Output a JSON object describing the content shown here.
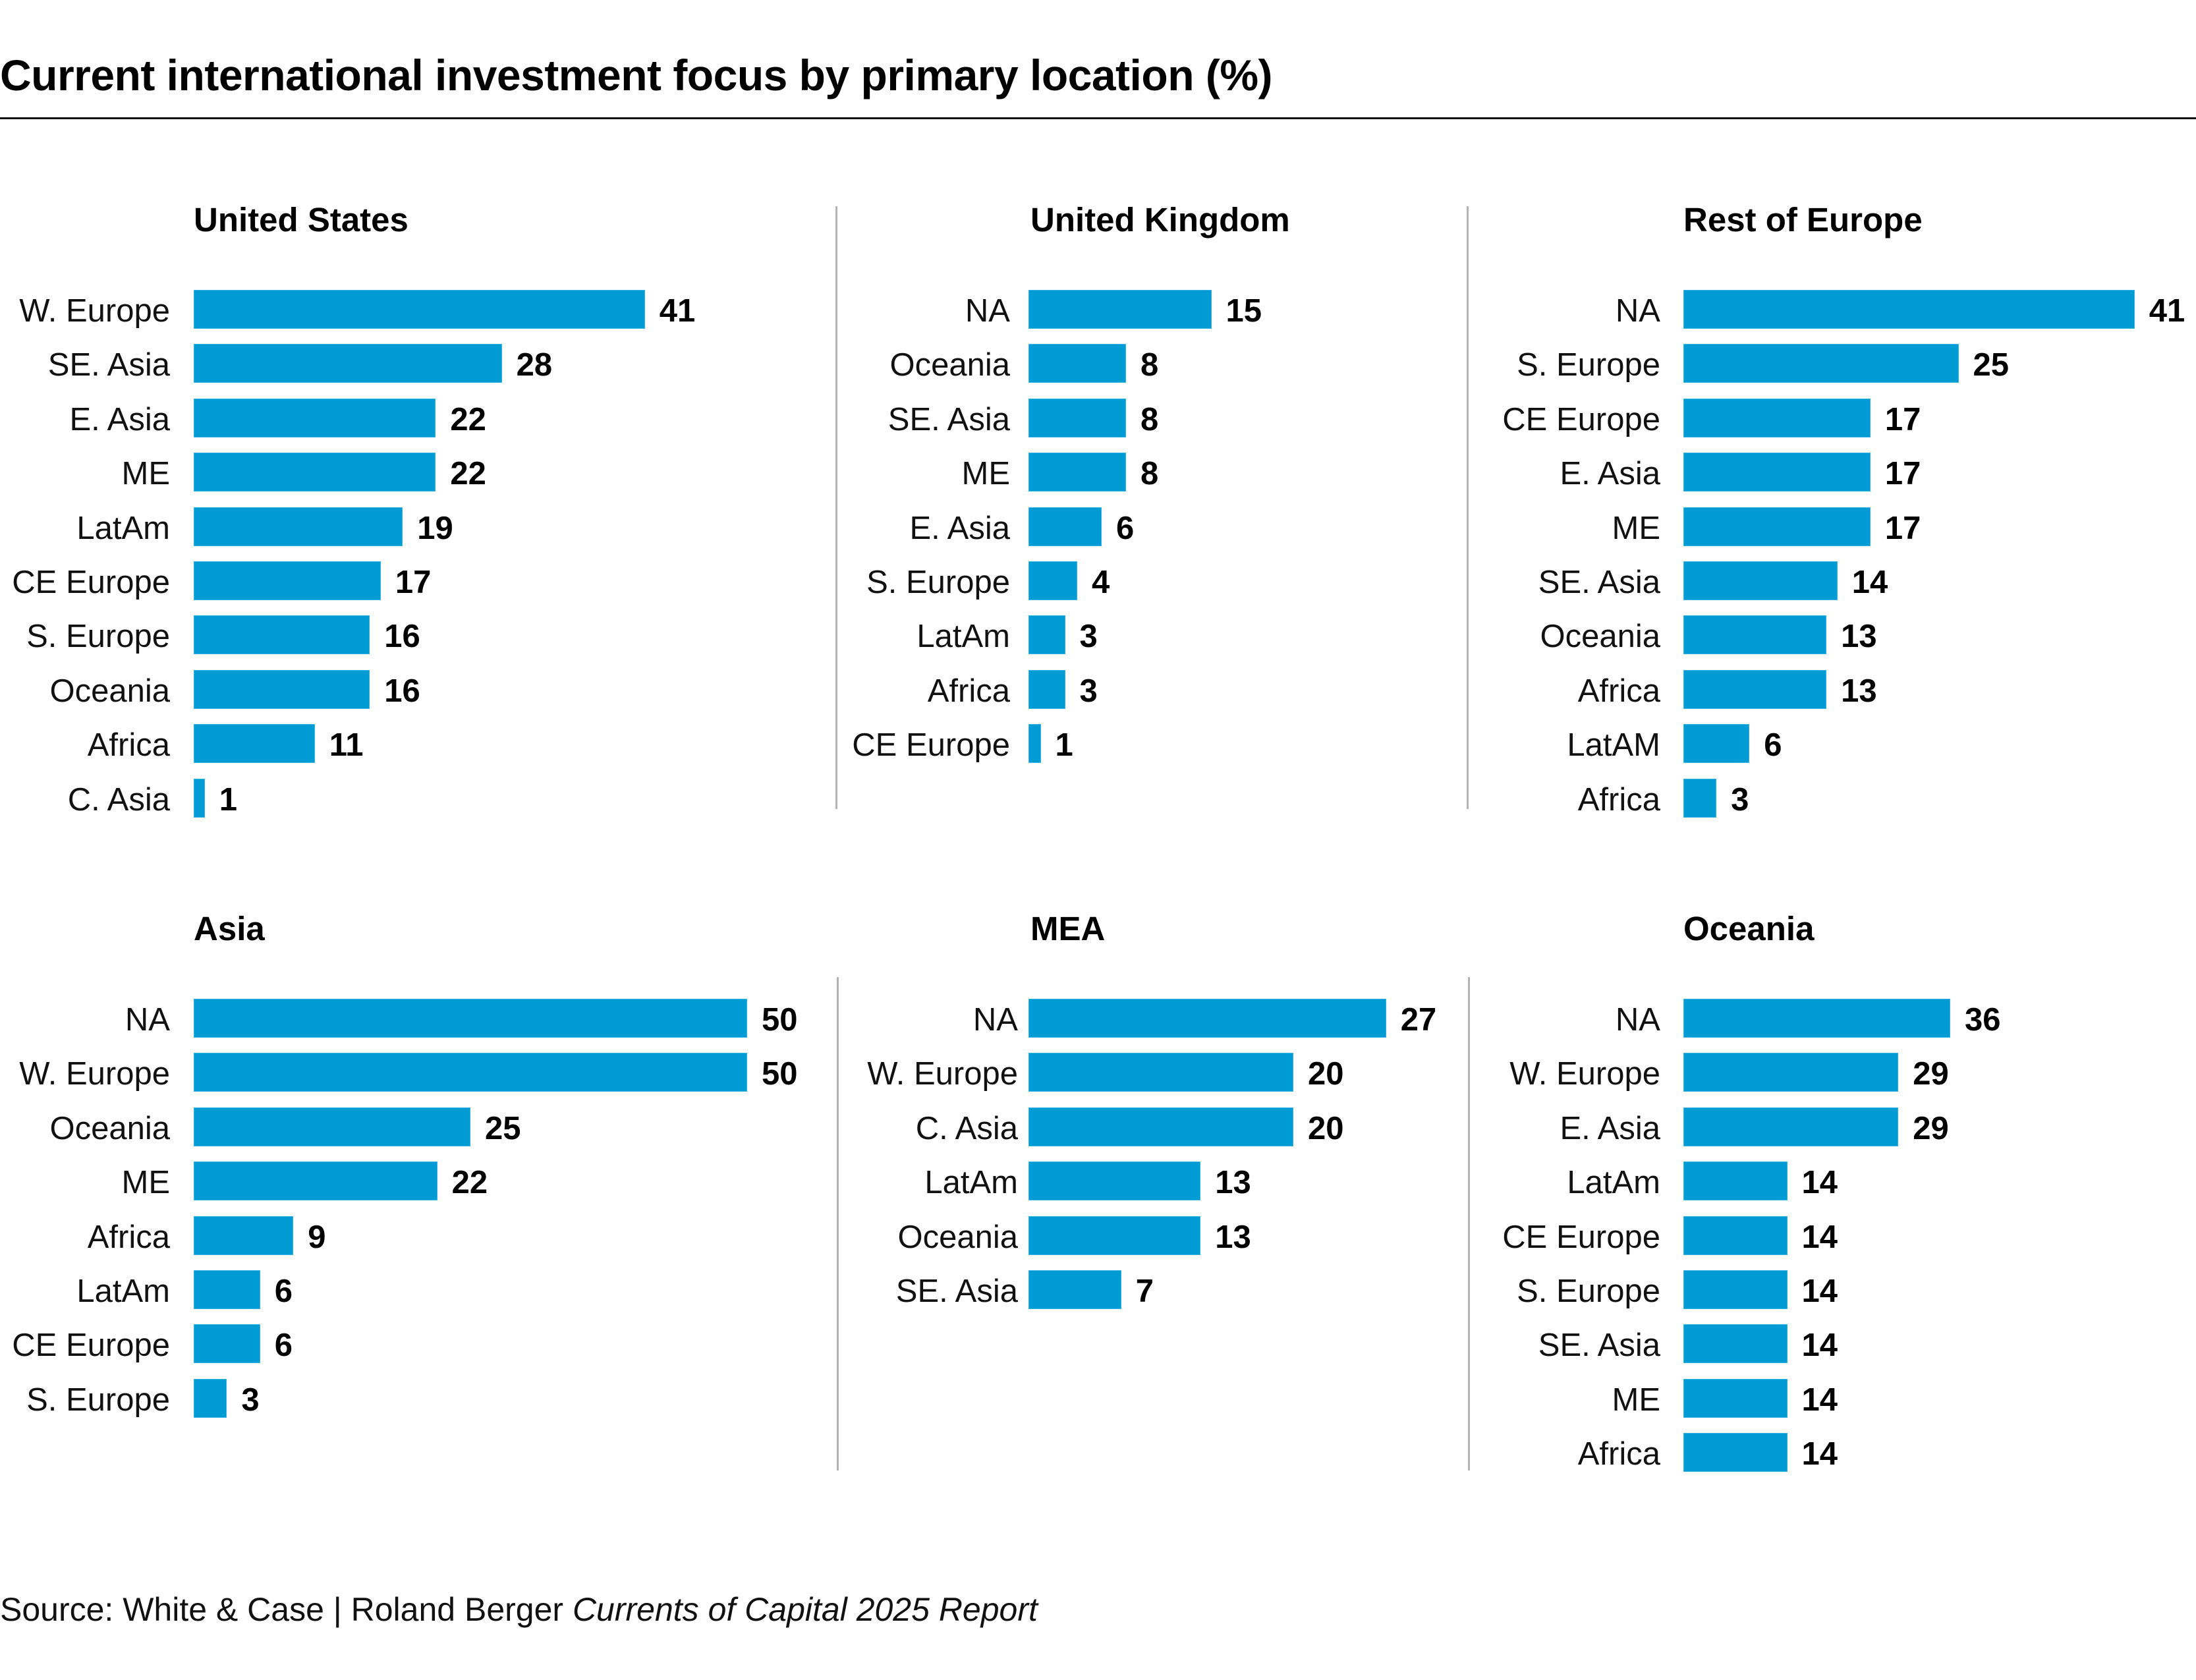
{
  "chart_data": {
    "type": "bar",
    "title": "Current international investment focus by primary location (%)",
    "orientation": "horizontal",
    "grid": false,
    "legend": "none",
    "bar_color": "#009ad4",
    "panels": [
      {
        "title": "United States",
        "categories": [
          "W. Europe",
          "SE. Asia",
          "E. Asia",
          "ME",
          "LatAm",
          "CE Europe",
          "S. Europe",
          "Oceania",
          "Africa",
          "C. Asia"
        ],
        "values": [
          41,
          28,
          22,
          22,
          19,
          17,
          16,
          16,
          11,
          1
        ]
      },
      {
        "title": "United Kingdom",
        "categories": [
          "NA",
          "Oceania",
          "SE. Asia",
          "ME",
          "E. Asia",
          "S. Europe",
          "LatAm",
          "Africa",
          "CE Europe"
        ],
        "values": [
          15,
          8,
          8,
          8,
          6,
          4,
          3,
          3,
          1
        ]
      },
      {
        "title": "Rest of Europe",
        "categories": [
          "NA",
          "S. Europe",
          "CE Europe",
          "E. Asia",
          "ME",
          "SE. Asia",
          "Oceania",
          "Africa",
          "LatAM",
          "Africa"
        ],
        "values": [
          41,
          25,
          17,
          17,
          17,
          14,
          13,
          13,
          6,
          3
        ]
      },
      {
        "title": "Asia",
        "categories": [
          "NA",
          "W. Europe",
          "Oceania",
          "ME",
          "Africa",
          "LatAm",
          "CE Europe",
          "S. Europe"
        ],
        "values": [
          50,
          50,
          25,
          22,
          9,
          6,
          6,
          3
        ]
      },
      {
        "title": "MEA",
        "categories": [
          "NA",
          "W. Europe",
          "C. Asia",
          "LatAm",
          "Oceania",
          "SE. Asia"
        ],
        "values": [
          27,
          20,
          20,
          13,
          13,
          7
        ]
      },
      {
        "title": "Oceania",
        "categories": [
          "NA",
          "W. Europe",
          "E. Asia",
          "LatAm",
          "CE Europe",
          "S. Europe",
          "SE. Asia",
          "ME",
          "Africa"
        ],
        "values": [
          36,
          29,
          29,
          14,
          14,
          14,
          14,
          14,
          14
        ]
      }
    ],
    "xlabel": "",
    "ylabel": ""
  },
  "header": {
    "title": "Current international investment focus by primary location (%)"
  },
  "footer": {
    "source_prefix": "Source: White & Case | Roland Berger ",
    "source_italic": "Currents of Capital 2025 Report"
  }
}
